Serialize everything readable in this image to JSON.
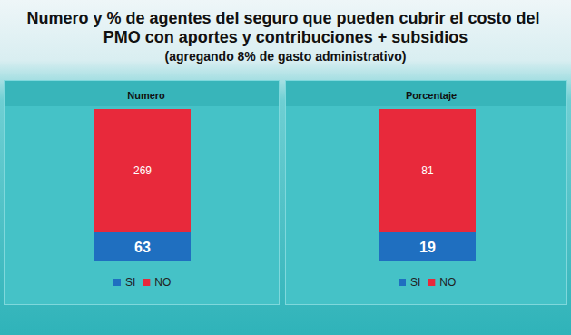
{
  "title": "Numero y % de agentes del seguro que pueden cubrir el costo del PMO con aportes y contribuciones + subsidios",
  "subtitle": "(agregando 8% de gasto administrativo)",
  "chart_data": [
    {
      "type": "bar",
      "title": "Numero",
      "stacked": true,
      "data_labels": true,
      "tick_labels": false,
      "legend": "bottom",
      "series": [
        {
          "name": "SI",
          "color": "#1f6fc0",
          "values": [
            63
          ]
        },
        {
          "name": "NO",
          "color": "#e8293b",
          "values": [
            269
          ]
        }
      ]
    },
    {
      "type": "bar",
      "title": "Porcentaje",
      "stacked": true,
      "data_labels": true,
      "tick_labels": false,
      "legend": "bottom",
      "series": [
        {
          "name": "SI",
          "color": "#1f6fc0",
          "values": [
            19
          ]
        },
        {
          "name": "NO",
          "color": "#e8293b",
          "values": [
            81
          ]
        }
      ]
    }
  ]
}
